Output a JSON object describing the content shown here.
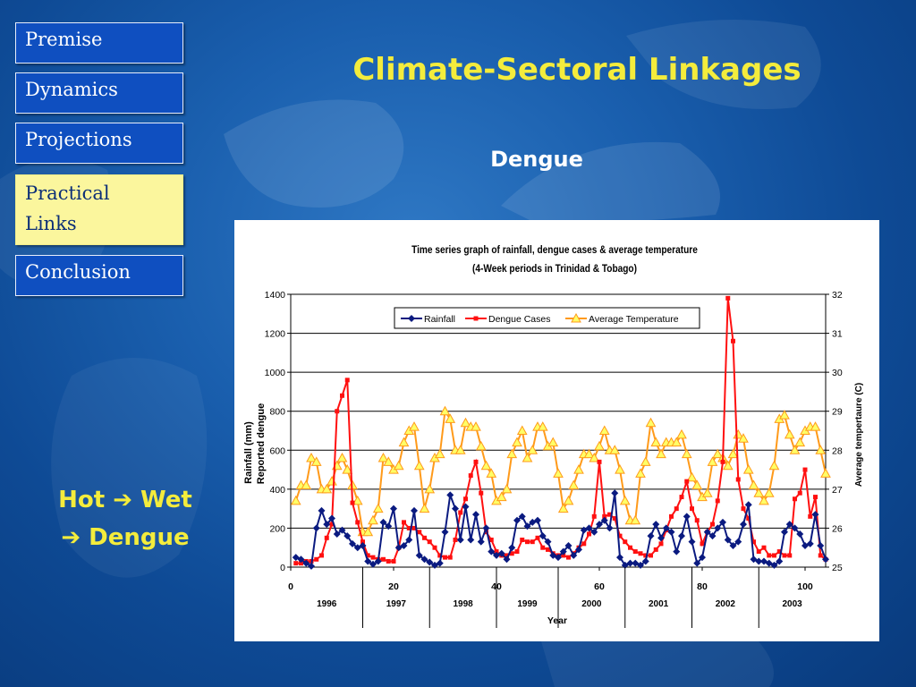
{
  "nav": {
    "items": [
      {
        "label": "Premise"
      },
      {
        "label": "Dynamics"
      },
      {
        "label": "Projections"
      },
      {
        "label": "Practical Links",
        "line1": "Practical",
        "line2": "Links"
      },
      {
        "label": "Conclusion"
      }
    ]
  },
  "slide": {
    "title": "Climate-Sectoral Linkages",
    "subtitle": "Dengue",
    "callout_line1": "Hot ➔ Wet",
    "callout_line2": "➔ Dengue"
  },
  "colors": {
    "title": "#f4ec3c",
    "nav_bg": "#0f4fc0",
    "nav_active_bg": "#fbf69d",
    "rainfall": "#0a1a80",
    "dengue": "#ff1010",
    "temperature": "#ff9a1a",
    "temperature_marker_fill": "#ffff66"
  },
  "chart_data": {
    "type": "line",
    "title_line1": "Time series graph of rainfall, dengue cases & average temperature",
    "title_line2": "(4-Week periods in Trinidad & Tobago)",
    "xlabel": "Year",
    "ylabel_line1": "Rainfall   (mm)",
    "ylabel_line2": "Reported   dengue",
    "y2label": "Average tempertaure (C)",
    "xlim": [
      0,
      104
    ],
    "ylim": [
      0,
      1400
    ],
    "y2lim": [
      25,
      32
    ],
    "grid": true,
    "legend_position": "top-center",
    "x_ticks": [
      0,
      20,
      40,
      60,
      80,
      100
    ],
    "y_ticks": [
      0,
      200,
      400,
      600,
      800,
      1000,
      1200,
      1400
    ],
    "y2_ticks": [
      25,
      26,
      27,
      28,
      29,
      30,
      31,
      32
    ],
    "year_groups": [
      {
        "label": "1996",
        "start": 0,
        "end": 14
      },
      {
        "label": "1997",
        "start": 14,
        "end": 27
      },
      {
        "label": "1998",
        "start": 27,
        "end": 40
      },
      {
        "label": "1999",
        "start": 40,
        "end": 52
      },
      {
        "label": "2000",
        "start": 52,
        "end": 65
      },
      {
        "label": "2001",
        "start": 65,
        "end": 78
      },
      {
        "label": "2002",
        "start": 78,
        "end": 91
      },
      {
        "label": "2003",
        "start": 91,
        "end": 104
      }
    ],
    "x": [
      1,
      2,
      3,
      4,
      5,
      6,
      7,
      8,
      9,
      10,
      11,
      12,
      13,
      14,
      15,
      16,
      17,
      18,
      19,
      20,
      21,
      22,
      23,
      24,
      25,
      26,
      27,
      28,
      29,
      30,
      31,
      32,
      33,
      34,
      35,
      36,
      37,
      38,
      39,
      40,
      41,
      42,
      43,
      44,
      45,
      46,
      47,
      48,
      49,
      50,
      51,
      52,
      53,
      54,
      55,
      56,
      57,
      58,
      59,
      60,
      61,
      62,
      63,
      64,
      65,
      66,
      67,
      68,
      69,
      70,
      71,
      72,
      73,
      74,
      75,
      76,
      77,
      78,
      79,
      80,
      81,
      82,
      83,
      84,
      85,
      86,
      87,
      88,
      89,
      90,
      91,
      92,
      93,
      94,
      95,
      96,
      97,
      98,
      99,
      100,
      101,
      102,
      103,
      104
    ],
    "series": [
      {
        "name": "Rainfall",
        "axis": "left",
        "marker": "diamond",
        "values": [
          50,
          40,
          20,
          5,
          200,
          290,
          220,
          250,
          170,
          190,
          160,
          120,
          100,
          110,
          30,
          15,
          30,
          230,
          210,
          300,
          100,
          110,
          140,
          290,
          60,
          40,
          25,
          10,
          20,
          180,
          370,
          300,
          140,
          310,
          140,
          270,
          130,
          200,
          80,
          60,
          70,
          40,
          100,
          240,
          260,
          210,
          230,
          240,
          160,
          130,
          60,
          50,
          80,
          110,
          60,
          90,
          190,
          200,
          180,
          220,
          240,
          200,
          380,
          50,
          10,
          20,
          20,
          10,
          30,
          160,
          220,
          150,
          200,
          180,
          80,
          160,
          260,
          130,
          20,
          50,
          180,
          160,
          200,
          230,
          140,
          110,
          130,
          220,
          320,
          40,
          30,
          30,
          20,
          10,
          30,
          180,
          220,
          200,
          170,
          110,
          120,
          270,
          110,
          40
        ]
      },
      {
        "name": "Dengue Cases",
        "axis": "left",
        "marker": "square",
        "values": [
          20,
          20,
          30,
          30,
          40,
          60,
          150,
          220,
          800,
          880,
          960,
          330,
          230,
          130,
          60,
          50,
          40,
          40,
          30,
          30,
          100,
          230,
          200,
          200,
          180,
          150,
          130,
          100,
          60,
          50,
          50,
          140,
          280,
          350,
          470,
          540,
          380,
          180,
          140,
          80,
          60,
          60,
          70,
          80,
          140,
          130,
          130,
          150,
          100,
          90,
          70,
          60,
          60,
          50,
          70,
          100,
          120,
          170,
          260,
          540,
          260,
          270,
          250,
          160,
          130,
          100,
          80,
          70,
          60,
          60,
          90,
          120,
          190,
          260,
          300,
          360,
          440,
          300,
          240,
          120,
          180,
          220,
          340,
          540,
          1380,
          1160,
          450,
          300,
          250,
          130,
          80,
          100,
          60,
          60,
          80,
          60,
          60,
          350,
          380,
          500,
          260,
          360,
          60,
          40
        ]
      },
      {
        "name": "Average Temperature",
        "axis": "right",
        "marker": "triangle",
        "values": [
          26.7,
          27.1,
          27.1,
          27.8,
          27.7,
          27.0,
          27.0,
          27.2,
          27.6,
          27.8,
          27.5,
          27.1,
          26.7,
          25.9,
          25.9,
          26.2,
          26.5,
          27.8,
          27.7,
          27.5,
          27.6,
          28.2,
          28.5,
          28.6,
          27.6,
          26.5,
          27.0,
          27.8,
          27.9,
          29.0,
          28.8,
          28.0,
          28.0,
          28.7,
          28.6,
          28.6,
          28.1,
          27.6,
          27.4,
          26.7,
          26.8,
          27.0,
          27.9,
          28.2,
          28.5,
          27.8,
          28.0,
          28.6,
          28.6,
          28.1,
          28.2,
          27.4,
          26.5,
          26.7,
          27.1,
          27.5,
          27.9,
          27.9,
          27.8,
          28.1,
          28.5,
          28.0,
          28.0,
          27.5,
          26.7,
          26.2,
          26.2,
          27.4,
          27.7,
          28.7,
          28.2,
          27.9,
          28.2,
          28.2,
          28.2,
          28.4,
          27.9,
          27.3,
          27.1,
          26.8,
          26.9,
          27.7,
          27.9,
          27.8,
          27.6,
          27.9,
          28.4,
          28.3,
          27.5,
          27.1,
          26.9,
          26.7,
          26.9,
          27.6,
          28.8,
          28.9,
          28.4,
          28.0,
          28.2,
          28.5,
          28.6,
          28.6,
          28.0,
          27.4
        ]
      }
    ]
  }
}
